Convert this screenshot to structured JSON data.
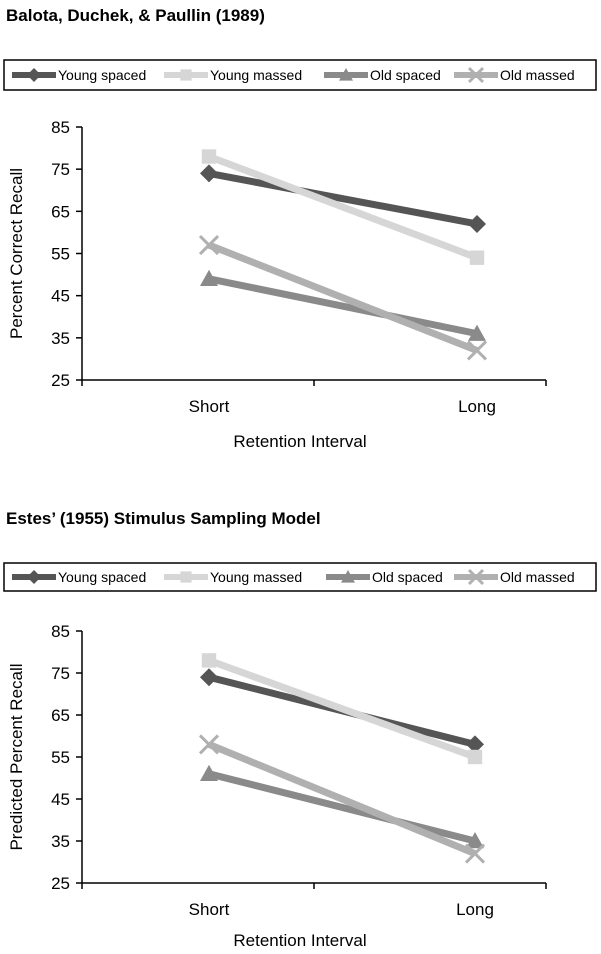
{
  "colors": {
    "young_spaced": "#555555",
    "young_massed": "#d6d6d6",
    "old_spaced": "#8a8a8a",
    "old_massed": "#b0b0b0",
    "axis": "#000000"
  },
  "chart_data": [
    {
      "type": "line",
      "title": "Balota, Duchek, & Paullin (1989)",
      "xlabel": "Retention Interval",
      "ylabel": "Percent Correct Recall",
      "categories": [
        "Short",
        "Long"
      ],
      "ylim": [
        25,
        85
      ],
      "yticks": [
        25,
        35,
        45,
        55,
        65,
        75,
        85
      ],
      "grid": false,
      "legend_position": "top",
      "series": [
        {
          "name": "Young spaced",
          "marker": "diamond",
          "values": [
            74,
            62
          ]
        },
        {
          "name": "Young massed",
          "marker": "square",
          "values": [
            78,
            54
          ]
        },
        {
          "name": "Old spaced",
          "marker": "triangle",
          "values": [
            49,
            36
          ]
        },
        {
          "name": "Old massed",
          "marker": "x",
          "values": [
            57,
            32
          ]
        }
      ]
    },
    {
      "type": "line",
      "title": "Estes’ (1955) Stimulus Sampling Model",
      "xlabel": "Retention Interval",
      "ylabel": "Predicted Percent Recall",
      "categories": [
        "Short",
        "Long"
      ],
      "ylim": [
        25,
        85
      ],
      "yticks": [
        25,
        35,
        45,
        55,
        65,
        75,
        85
      ],
      "grid": false,
      "legend_position": "top",
      "series": [
        {
          "name": "Young spaced",
          "marker": "diamond",
          "values": [
            74,
            58
          ]
        },
        {
          "name": "Young massed",
          "marker": "square",
          "values": [
            78,
            55
          ]
        },
        {
          "name": "Old spaced",
          "marker": "triangle",
          "values": [
            51,
            35
          ]
        },
        {
          "name": "Old massed",
          "marker": "x",
          "values": [
            58,
            32
          ]
        }
      ]
    }
  ]
}
